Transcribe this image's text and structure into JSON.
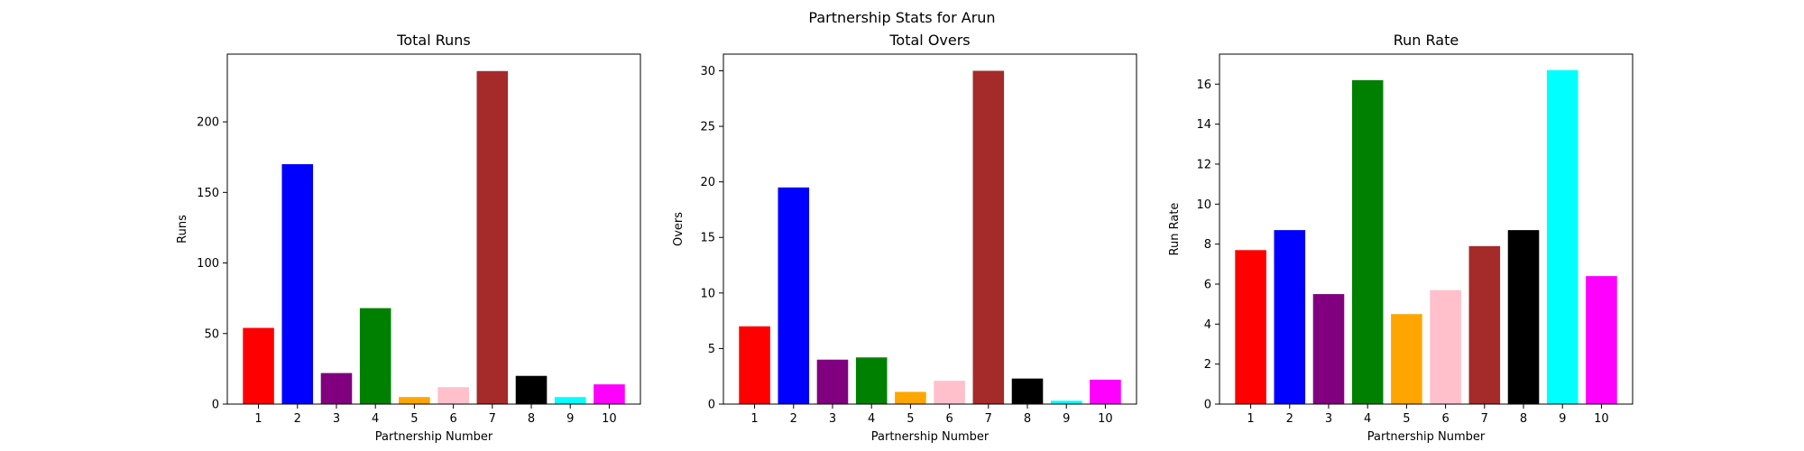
{
  "figure_title": "Partnership Stats for Arun",
  "chart_data": [
    {
      "type": "bar",
      "title": "Total Runs",
      "xlabel": "Partnership Number",
      "ylabel": "Runs",
      "categories": [
        "1",
        "2",
        "3",
        "4",
        "5",
        "6",
        "7",
        "8",
        "9",
        "10"
      ],
      "values": [
        54,
        170,
        22,
        68,
        5,
        12,
        236,
        20,
        5,
        14
      ],
      "colors": [
        "#ff0000",
        "#0000ff",
        "#800080",
        "#008000",
        "#ffa500",
        "#ffc0cb",
        "#a52a2a",
        "#000000",
        "#00ffff",
        "#ff00ff"
      ],
      "ylim": [
        0,
        248
      ],
      "yticks": [
        0,
        50,
        100,
        150,
        200
      ],
      "grid": false
    },
    {
      "type": "bar",
      "title": "Total Overs",
      "xlabel": "Partnership Number",
      "ylabel": "Overs",
      "categories": [
        "1",
        "2",
        "3",
        "4",
        "5",
        "6",
        "7",
        "8",
        "9",
        "10"
      ],
      "values": [
        7.0,
        19.5,
        4.0,
        4.2,
        1.1,
        2.1,
        30.0,
        2.3,
        0.3,
        2.2
      ],
      "colors": [
        "#ff0000",
        "#0000ff",
        "#800080",
        "#008000",
        "#ffa500",
        "#ffc0cb",
        "#a52a2a",
        "#000000",
        "#00ffff",
        "#ff00ff"
      ],
      "ylim": [
        0,
        31.5
      ],
      "yticks": [
        0,
        5,
        10,
        15,
        20,
        25,
        30
      ],
      "grid": false
    },
    {
      "type": "bar",
      "title": "Run Rate",
      "xlabel": "Partnership Number",
      "ylabel": "Run Rate",
      "categories": [
        "1",
        "2",
        "3",
        "4",
        "5",
        "6",
        "7",
        "8",
        "9",
        "10"
      ],
      "values": [
        7.7,
        8.7,
        5.5,
        16.2,
        4.5,
        5.7,
        7.9,
        8.7,
        16.7,
        6.4
      ],
      "colors": [
        "#ff0000",
        "#0000ff",
        "#800080",
        "#008000",
        "#ffa500",
        "#ffc0cb",
        "#a52a2a",
        "#000000",
        "#00ffff",
        "#ff00ff"
      ],
      "ylim": [
        0,
        17.5
      ],
      "yticks": [
        0,
        2,
        4,
        6,
        8,
        10,
        12,
        14,
        16
      ],
      "grid": false
    }
  ]
}
